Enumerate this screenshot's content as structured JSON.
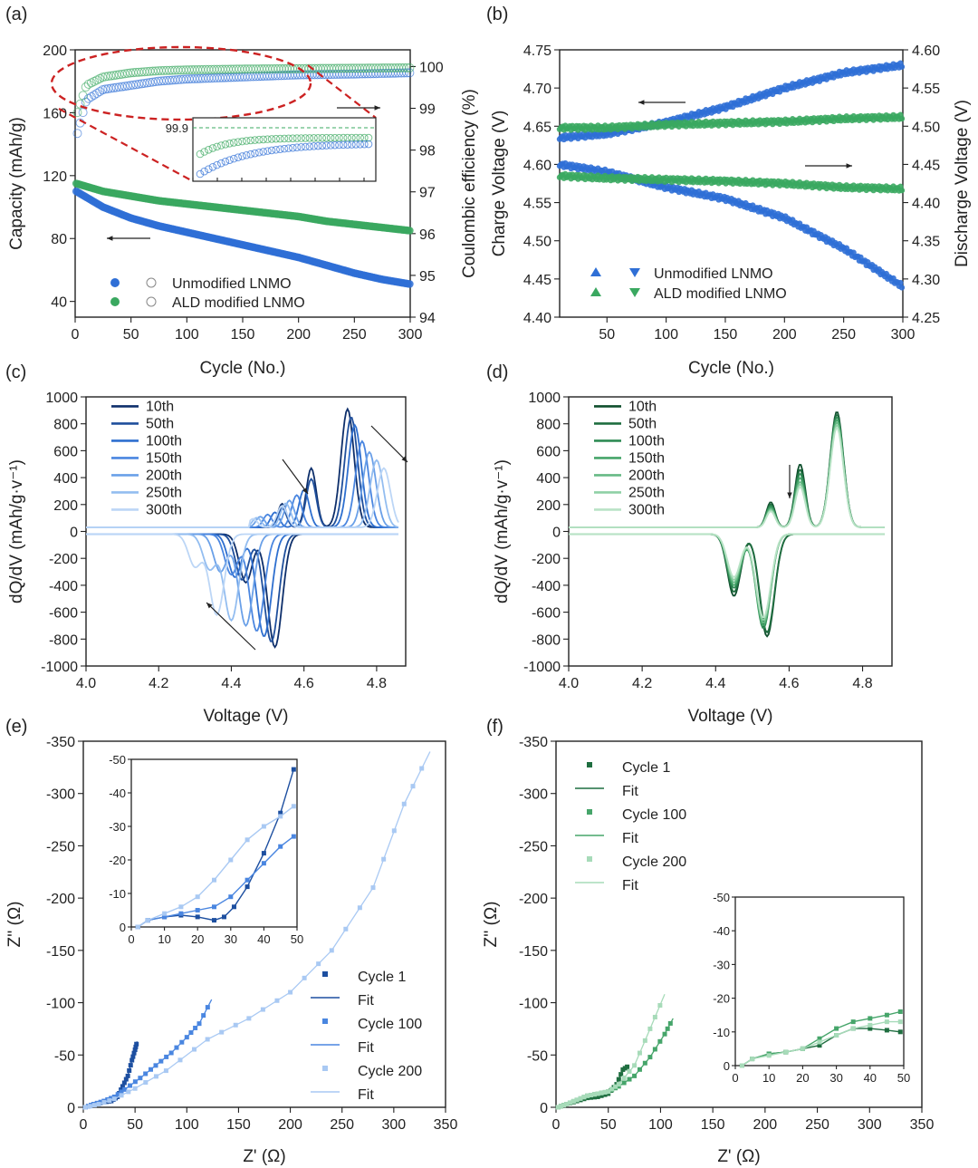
{
  "chart_data": [
    {
      "id": "a",
      "panel_label": "(a)",
      "type": "scatter",
      "xlabel": "Cycle (No.)",
      "ylabel": "Capacity (mAh/g)",
      "ylabel_right": "Coulombic efficiency (%)",
      "xlim": [
        0,
        300
      ],
      "ylim": [
        30,
        200
      ],
      "ylim_right": [
        94,
        100.4
      ],
      "x_ticks": [
        "0",
        "50",
        "100",
        "150",
        "200",
        "250",
        "300"
      ],
      "y_ticks": [
        "40",
        "80",
        "120",
        "160",
        "200"
      ],
      "y_ticks_right": [
        "94",
        "95",
        "96",
        "97",
        "98",
        "99",
        "100"
      ],
      "legend": [
        "Unmodified LNMO",
        "ALD modified LNMO"
      ],
      "series": [
        {
          "name": "Unmodified LNMO capacity",
          "color": "#2f6fd6",
          "x": [
            1,
            25,
            50,
            75,
            100,
            125,
            150,
            175,
            200,
            225,
            250,
            275,
            300
          ],
          "y": [
            110,
            100,
            93,
            88,
            84,
            80,
            76,
            72,
            68,
            63,
            58,
            54,
            51
          ]
        },
        {
          "name": "ALD modified LNMO capacity",
          "color": "#3aa860",
          "x": [
            1,
            25,
            50,
            75,
            100,
            125,
            150,
            175,
            200,
            225,
            250,
            275,
            300
          ],
          "y": [
            115,
            110,
            107,
            104,
            102,
            100,
            98,
            96,
            94,
            91,
            89,
            87,
            85
          ]
        },
        {
          "name": "Unmodified LNMO CE",
          "color": "#2f6fd6",
          "x": [
            2,
            10,
            25,
            50,
            75,
            100,
            150,
            200,
            250,
            300
          ],
          "y": [
            98.4,
            99.2,
            99.45,
            99.55,
            99.65,
            99.7,
            99.75,
            99.8,
            99.82,
            99.85
          ]
        },
        {
          "name": "ALD modified LNMO CE",
          "color": "#3aa860",
          "x": [
            2,
            10,
            25,
            50,
            75,
            100,
            150,
            200,
            250,
            300
          ],
          "y": [
            98.9,
            99.55,
            99.75,
            99.85,
            99.9,
            99.92,
            99.94,
            99.95,
            99.96,
            99.97
          ]
        }
      ],
      "inset": {
        "y_tick": "99.9"
      }
    },
    {
      "id": "b",
      "panel_label": "(b)",
      "type": "scatter",
      "xlabel": "Cycle (No.)",
      "ylabel": "Charge Voltage (V)",
      "ylabel_right": "Discharge Voltage (V)",
      "xlim": [
        10,
        300
      ],
      "ylim": [
        4.4,
        4.75
      ],
      "ylim_right": [
        4.25,
        4.6
      ],
      "x_ticks": [
        "50",
        "100",
        "150",
        "200",
        "250",
        "300"
      ],
      "y_ticks": [
        "4.40",
        "4.45",
        "4.50",
        "4.55",
        "4.60",
        "4.65",
        "4.70",
        "4.75"
      ],
      "y_ticks_right": [
        "4.25",
        "4.30",
        "4.35",
        "4.40",
        "4.45",
        "4.50",
        "4.55",
        "4.60"
      ],
      "legend": [
        "Unmodified LNMO",
        "ALD modified LNMO"
      ],
      "series": [
        {
          "name": "Unmodified charge",
          "color": "#2f6fd6",
          "x": [
            10,
            50,
            100,
            150,
            200,
            250,
            300
          ],
          "y": [
            4.635,
            4.64,
            4.655,
            4.675,
            4.7,
            4.72,
            4.73
          ]
        },
        {
          "name": "ALD charge",
          "color": "#3aa860",
          "x": [
            10,
            50,
            100,
            150,
            200,
            250,
            300
          ],
          "y": [
            4.648,
            4.648,
            4.652,
            4.654,
            4.656,
            4.66,
            4.662
          ]
        },
        {
          "name": "Unmodified discharge",
          "color": "#2f6fd6",
          "x": [
            10,
            50,
            100,
            150,
            200,
            250,
            300
          ],
          "y": [
            4.45,
            4.44,
            4.42,
            4.405,
            4.38,
            4.34,
            4.29
          ]
        },
        {
          "name": "ALD discharge",
          "color": "#3aa860",
          "x": [
            10,
            50,
            100,
            150,
            200,
            250,
            300
          ],
          "y": [
            4.435,
            4.432,
            4.43,
            4.428,
            4.425,
            4.42,
            4.418
          ]
        }
      ]
    },
    {
      "id": "c",
      "panel_label": "(c)",
      "type": "line",
      "xlabel": "Voltage (V)",
      "ylabel": "dQ/dV (mAh/g·v⁻¹)",
      "xlim": [
        4.0,
        4.88
      ],
      "ylim": [
        -1000,
        1000
      ],
      "x_ticks": [
        "4.0",
        "4.2",
        "4.4",
        "4.6",
        "4.8"
      ],
      "y_ticks": [
        "-1000",
        "-800",
        "-600",
        "-400",
        "-200",
        "0",
        "200",
        "400",
        "600",
        "800",
        "1000"
      ],
      "legend": [
        "10th",
        "50th",
        "100th",
        "150th",
        "200th",
        "250th",
        "300th"
      ],
      "colors": [
        "#0e2f6b",
        "#1f4f9c",
        "#2e6fcf",
        "#4a86e0",
        "#6aa0e8",
        "#93bdf0",
        "#bcd6f6"
      ],
      "charge_peaks": [
        [
          4.72,
          880,
          4.62,
          440
        ],
        [
          4.73,
          820,
          4.62,
          360
        ],
        [
          4.74,
          760,
          4.6,
          280
        ],
        [
          4.76,
          640,
          4.58,
          240
        ],
        [
          4.78,
          560,
          4.56,
          200
        ],
        [
          4.8,
          500,
          4.55,
          180
        ],
        [
          4.82,
          440,
          4.54,
          160
        ]
      ],
      "discharge_peaks": [
        [
          4.52,
          -840,
          4.44,
          -360
        ],
        [
          4.51,
          -800,
          4.43,
          -340
        ],
        [
          4.49,
          -760,
          4.41,
          -320
        ],
        [
          4.47,
          -720,
          4.4,
          -300
        ],
        [
          4.44,
          -680,
          4.37,
          -280
        ],
        [
          4.4,
          -640,
          4.34,
          -260
        ],
        [
          4.36,
          -600,
          4.3,
          -240
        ]
      ]
    },
    {
      "id": "d",
      "panel_label": "(d)",
      "type": "line",
      "xlabel": "Voltage (V)",
      "ylabel": "dQ/dV (mAh/g·v⁻¹)",
      "xlim": [
        4.0,
        4.88
      ],
      "ylim": [
        -1000,
        1000
      ],
      "x_ticks": [
        "4.0",
        "4.2",
        "4.4",
        "4.6",
        "4.8"
      ],
      "y_ticks": [
        "-1000",
        "-800",
        "-600",
        "-400",
        "-200",
        "0",
        "200",
        "400",
        "600",
        "800",
        "1000"
      ],
      "legend": [
        "10th",
        "50th",
        "100th",
        "150th",
        "200th",
        "250th",
        "300th"
      ],
      "colors": [
        "#0f4f2d",
        "#1f6e40",
        "#2f8c55",
        "#46a56a",
        "#67ba85",
        "#8fd0a5",
        "#b9e3c6"
      ],
      "charge_peaks": [
        [
          4.73,
          860,
          4.63,
          470
        ],
        [
          4.73,
          840,
          4.63,
          430
        ],
        [
          4.73,
          820,
          4.63,
          400
        ],
        [
          4.73,
          800,
          4.63,
          370
        ],
        [
          4.73,
          780,
          4.63,
          340
        ],
        [
          4.73,
          760,
          4.63,
          320
        ],
        [
          4.73,
          740,
          4.63,
          300
        ]
      ],
      "discharge_peaks": [
        [
          4.54,
          -760,
          4.45,
          -460
        ],
        [
          4.54,
          -730,
          4.45,
          -430
        ],
        [
          4.53,
          -700,
          4.45,
          -400
        ],
        [
          4.53,
          -680,
          4.45,
          -380
        ],
        [
          4.53,
          -660,
          4.45,
          -360
        ],
        [
          4.53,
          -640,
          4.45,
          -340
        ],
        [
          4.53,
          -620,
          4.45,
          -320
        ]
      ]
    },
    {
      "id": "e",
      "panel_label": "(e)",
      "type": "scatter",
      "xlabel": "Z' (Ω)",
      "ylabel": "Z'' (Ω)",
      "xlim": [
        0,
        350
      ],
      "ylim": [
        0,
        -350
      ],
      "x_ticks": [
        "0",
        "50",
        "100",
        "150",
        "200",
        "250",
        "300",
        "350"
      ],
      "y_ticks": [
        "0",
        "-50",
        "-100",
        "-150",
        "-200",
        "-250",
        "-300",
        "-350"
      ],
      "legend": [
        "Cycle 1",
        "Fit",
        "Cycle 100",
        "Fit",
        "Cycle 200",
        "Fit"
      ],
      "series": [
        {
          "name": "Cycle 1",
          "color": "#1d4fa0",
          "x": [
            2,
            10,
            20,
            27,
            33,
            38,
            43,
            47,
            50,
            52
          ],
          "y": [
            0,
            -3,
            -5,
            -6,
            -10,
            -20,
            -30,
            -45,
            -55,
            -63
          ]
        },
        {
          "name": "Cycle 100",
          "color": "#4a86e0",
          "x": [
            2,
            10,
            20,
            30,
            40,
            55,
            70,
            85,
            100,
            112,
            124
          ],
          "y": [
            0,
            -3,
            -6,
            -10,
            -17,
            -28,
            -40,
            -52,
            -67,
            -80,
            -103
          ]
        },
        {
          "name": "Cycle 200",
          "color": "#a9c9f3",
          "x": [
            2,
            15,
            30,
            50,
            80,
            120,
            160,
            200,
            240,
            280,
            310,
            335
          ],
          "y": [
            0,
            -3,
            -8,
            -18,
            -35,
            -65,
            -85,
            -110,
            -150,
            -210,
            -290,
            -340
          ]
        }
      ],
      "inset": {
        "xlim": [
          0,
          50
        ],
        "ylim": [
          0,
          -50
        ],
        "x_ticks": [
          "0",
          "10",
          "20",
          "30",
          "40",
          "50"
        ],
        "y_ticks": [
          "0",
          "-10",
          "-20",
          "-30",
          "-40",
          "-50"
        ],
        "series": [
          {
            "name": "Cycle 1",
            "color": "#1d4fa0",
            "x": [
              2,
              5,
              10,
              15,
              20,
              25,
              28,
              31,
              35,
              40,
              45,
              49
            ],
            "y": [
              0,
              -2,
              -3,
              -3.5,
              -3,
              -2,
              -3,
              -6,
              -12,
              -22,
              -34,
              -47
            ]
          },
          {
            "name": "Cycle 100",
            "color": "#4a86e0",
            "x": [
              2,
              5,
              10,
              15,
              20,
              25,
              30,
              35,
              40,
              45,
              49
            ],
            "y": [
              0,
              -2,
              -3,
              -4,
              -5,
              -6,
              -9,
              -14,
              -19,
              -24,
              -27
            ]
          },
          {
            "name": "Cycle 200",
            "color": "#a9c9f3",
            "x": [
              2,
              5,
              10,
              15,
              20,
              25,
              30,
              35,
              40,
              45,
              49
            ],
            "y": [
              0,
              -2,
              -4,
              -6,
              -9,
              -14,
              -20,
              -26,
              -30,
              -33,
              -36
            ]
          }
        ]
      }
    },
    {
      "id": "f",
      "panel_label": "(f)",
      "type": "scatter",
      "xlabel": "Z' (Ω)",
      "ylabel": "Z'' (Ω)",
      "xlim": [
        0,
        350
      ],
      "ylim": [
        0,
        -350
      ],
      "x_ticks": [
        "0",
        "50",
        "100",
        "150",
        "200",
        "250",
        "300",
        "350"
      ],
      "y_ticks": [
        "0",
        "-50",
        "-100",
        "-150",
        "-200",
        "-250",
        "-300",
        "-350"
      ],
      "legend": [
        "Cycle 1",
        "Fit",
        "Cycle 100",
        "Fit",
        "Cycle 200",
        "Fit"
      ],
      "series": [
        {
          "name": "Cycle 1",
          "color": "#1f6e40",
          "x": [
            2,
            10,
            20,
            30,
            40,
            50,
            58,
            64,
            70
          ],
          "y": [
            0,
            -3,
            -6,
            -9,
            -10,
            -13,
            -22,
            -36,
            -40
          ]
        },
        {
          "name": "Cycle 100",
          "color": "#46a56a",
          "x": [
            2,
            10,
            20,
            30,
            40,
            50,
            60,
            75,
            90,
            104,
            112
          ],
          "y": [
            0,
            -3,
            -7,
            -11,
            -13,
            -15,
            -20,
            -30,
            -48,
            -70,
            -85
          ]
        },
        {
          "name": "Cycle 200",
          "color": "#a7dbb9",
          "x": [
            2,
            10,
            20,
            30,
            40,
            50,
            60,
            75,
            90,
            104
          ],
          "y": [
            0,
            -3,
            -7,
            -11,
            -13,
            -15,
            -22,
            -40,
            -75,
            -108
          ]
        }
      ],
      "inset": {
        "xlim": [
          0,
          50
        ],
        "ylim": [
          0,
          -50
        ],
        "x_ticks": [
          "0",
          "10",
          "20",
          "30",
          "40",
          "50"
        ],
        "y_ticks": [
          "0",
          "-10",
          "-20",
          "-30",
          "-40",
          "-50"
        ],
        "series": [
          {
            "name": "Cycle 1",
            "color": "#1f6e40",
            "x": [
              2,
              5,
              10,
              15,
              20,
              25,
              30,
              35,
              40,
              45,
              49
            ],
            "y": [
              0,
              -2,
              -3.5,
              -4,
              -5,
              -6,
              -9,
              -11,
              -11,
              -10.5,
              -10
            ]
          },
          {
            "name": "Cycle 100",
            "color": "#46a56a",
            "x": [
              2,
              5,
              10,
              15,
              20,
              25,
              30,
              35,
              40,
              45,
              49
            ],
            "y": [
              0,
              -2,
              -3.5,
              -4,
              -5,
              -8,
              -11,
              -13,
              -14,
              -15,
              -16
            ]
          },
          {
            "name": "Cycle 200",
            "color": "#a7dbb9",
            "x": [
              2,
              5,
              10,
              15,
              20,
              25,
              30,
              35,
              40,
              45,
              49
            ],
            "y": [
              0,
              -2,
              -3,
              -4,
              -5,
              -7,
              -9,
              -11,
              -12,
              -13,
              -13
            ]
          }
        ]
      }
    }
  ]
}
